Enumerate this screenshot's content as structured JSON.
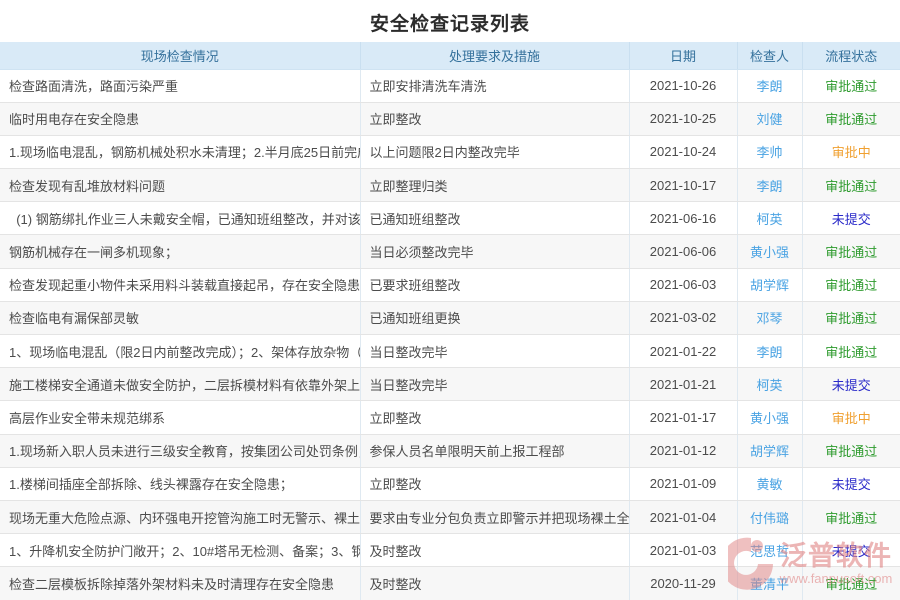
{
  "page": {
    "title": "安全检查记录列表"
  },
  "link_color": "#4aa3e3",
  "status_colors": {
    "approved": "#2e9b2e",
    "pending": "#f0a030",
    "unsubmitted": "#2a2ac9"
  },
  "table": {
    "columns": [
      {
        "key": "situation",
        "label": "现场检查情况"
      },
      {
        "key": "measure",
        "label": "处理要求及措施"
      },
      {
        "key": "date",
        "label": "日期"
      },
      {
        "key": "inspector",
        "label": "检查人"
      },
      {
        "key": "status",
        "label": "流程状态"
      }
    ],
    "rows": [
      {
        "situation": "检查路面清洗，路面污染严重",
        "measure": "立即安排清洗车清洗",
        "date": "2021-10-26",
        "inspector": "李朗",
        "status": "审批通过",
        "status_type": "approved"
      },
      {
        "situation": "临时用电存在安全隐患",
        "measure": "立即整改",
        "date": "2021-10-25",
        "inspector": "刘健",
        "status": "审批通过",
        "status_type": "approved"
      },
      {
        "situation": "1.现场临电混乱，钢筋机械处积水未清理；2.半月底25日前完成...",
        "measure": "以上问题限2日内整改完毕",
        "date": "2021-10-24",
        "inspector": "李帅",
        "status": "审批中",
        "status_type": "pending"
      },
      {
        "situation": "检查发现有乱堆放材料问题",
        "measure": "立即整理归类",
        "date": "2021-10-17",
        "inspector": "李朗",
        "status": "审批通过",
        "status_type": "approved"
      },
      {
        "situation": "  (1) 钢筋绑扎作业三人未戴安全帽，已通知班组整改，并对该...",
        "measure": "已通知班组整改",
        "date": "2021-06-16",
        "inspector": "柯英",
        "status": "未提交",
        "status_type": "unsubmitted"
      },
      {
        "situation": "钢筋机械存在一闸多机现象；",
        "measure": "当日必须整改完毕",
        "date": "2021-06-06",
        "inspector": "黄小强",
        "status": "审批通过",
        "status_type": "approved"
      },
      {
        "situation": "检查发现起重小物件未采用料斗装载直接起吊，存在安全隐患",
        "measure": "已要求班组整改",
        "date": "2021-06-03",
        "inspector": "胡学辉",
        "status": "审批通过",
        "status_type": "approved"
      },
      {
        "situation": "检查临电有漏保部灵敏",
        "measure": "已通知班组更换",
        "date": "2021-03-02",
        "inspector": "邓琴",
        "status": "审批通过",
        "status_type": "approved"
      },
      {
        "situation": "1、现场临电混乱（限2日内前整改完成）；2、架体存放杂物（...",
        "measure": "当日整改完毕",
        "date": "2021-01-22",
        "inspector": "李朗",
        "status": "审批通过",
        "status_type": "approved"
      },
      {
        "situation": "施工楼梯安全通道未做安全防护，二层拆模材料有依靠外架上的...",
        "measure": "当日整改完毕",
        "date": "2021-01-21",
        "inspector": "柯英",
        "status": "未提交",
        "status_type": "unsubmitted"
      },
      {
        "situation": "高层作业安全带未规范绑系",
        "measure": "立即整改",
        "date": "2021-01-17",
        "inspector": "黄小强",
        "status": "审批中",
        "status_type": "pending"
      },
      {
        "situation": "1.现场新入职人员未进行三级安全教育，按集团公司处罚条例，...",
        "measure": "参保人员名单限明天前上报工程部",
        "date": "2021-01-12",
        "inspector": "胡学辉",
        "status": "审批通过",
        "status_type": "approved"
      },
      {
        "situation": "1.楼梯间插座全部拆除、线头裸露存在安全隐患；",
        "measure": "立即整改",
        "date": "2021-01-09",
        "inspector": "黄敏",
        "status": "未提交",
        "status_type": "unsubmitted"
      },
      {
        "situation": "现场无重大危险点源、内环强电开挖管沟施工时无警示、裸土未...",
        "measure": "要求由专业分包负责立即警示并把现场裸土全...",
        "date": "2021-01-04",
        "inspector": "付伟璐",
        "status": "审批通过",
        "status_type": "approved"
      },
      {
        "situation": "1、升降机安全防护门敞开；2、10#塔吊无检测、备案；3、钢...",
        "measure": "及时整改",
        "date": "2021-01-03",
        "inspector": "范思哲",
        "status": "未提交",
        "status_type": "unsubmitted"
      },
      {
        "situation": "检查二层模板拆除掉落外架材料未及时清理存在安全隐患",
        "measure": "及时整改",
        "date": "2020-11-29",
        "inspector": "董清平",
        "status": "审批通过",
        "status_type": "approved"
      }
    ]
  },
  "watermark": {
    "brand": "泛普软件",
    "url": "www.fanpusoft.com"
  }
}
